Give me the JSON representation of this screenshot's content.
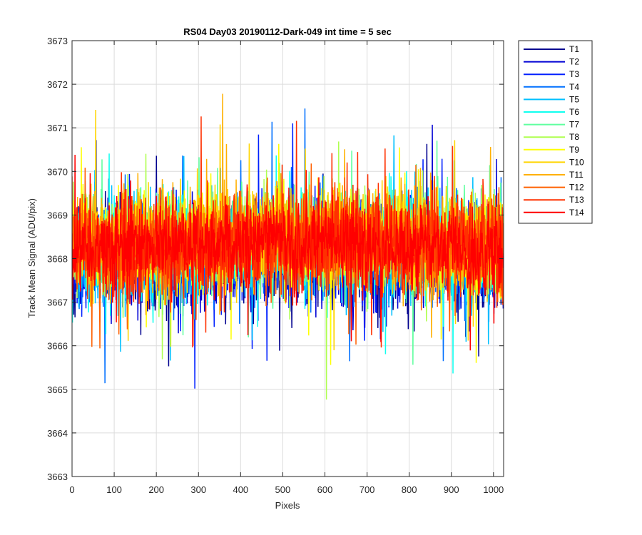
{
  "chart_data": {
    "type": "line",
    "title": "RS04 Day03 20190112-Dark-049 int time = 5 sec",
    "xlabel": "Pixels",
    "ylabel": "Track Mean Signal (ADU/pix)",
    "xlim": [
      0,
      1024
    ],
    "ylim": [
      3663,
      3673
    ],
    "xticks": [
      0,
      100,
      200,
      300,
      400,
      500,
      600,
      700,
      800,
      900,
      1000
    ],
    "yticks": [
      3663,
      3664,
      3665,
      3666,
      3667,
      3668,
      3669,
      3670,
      3671,
      3672,
      3673
    ],
    "grid": true,
    "legend_position": "outside-top-right",
    "series": [
      {
        "name": "T1",
        "color": "#00008f",
        "mean": 3667.9,
        "noise": 0.9
      },
      {
        "name": "T2",
        "color": "#0000d4",
        "mean": 3667.9,
        "noise": 0.9
      },
      {
        "name": "T3",
        "color": "#0020ff",
        "mean": 3668.0,
        "noise": 0.9
      },
      {
        "name": "T4",
        "color": "#0070ff",
        "mean": 3668.0,
        "noise": 0.9
      },
      {
        "name": "T5",
        "color": "#00c0ff",
        "mean": 3668.1,
        "noise": 0.9
      },
      {
        "name": "T6",
        "color": "#10ffef",
        "mean": 3668.2,
        "noise": 0.9
      },
      {
        "name": "T7",
        "color": "#60ff9f",
        "mean": 3668.3,
        "noise": 0.9
      },
      {
        "name": "T8",
        "color": "#afff50",
        "mean": 3668.3,
        "noise": 0.9
      },
      {
        "name": "T9",
        "color": "#ffff00",
        "mean": 3668.3,
        "noise": 0.9
      },
      {
        "name": "T10",
        "color": "#ffd500",
        "mean": 3668.3,
        "noise": 0.9
      },
      {
        "name": "T11",
        "color": "#ffb000",
        "mean": 3668.3,
        "noise": 0.9
      },
      {
        "name": "T12",
        "color": "#ff6000",
        "mean": 3668.2,
        "noise": 0.9
      },
      {
        "name": "T13",
        "color": "#ff3000",
        "mean": 3668.2,
        "noise": 0.9
      },
      {
        "name": "T14",
        "color": "#ff0000",
        "mean": 3668.2,
        "noise": 0.8
      }
    ],
    "points_per_series": 1024
  }
}
